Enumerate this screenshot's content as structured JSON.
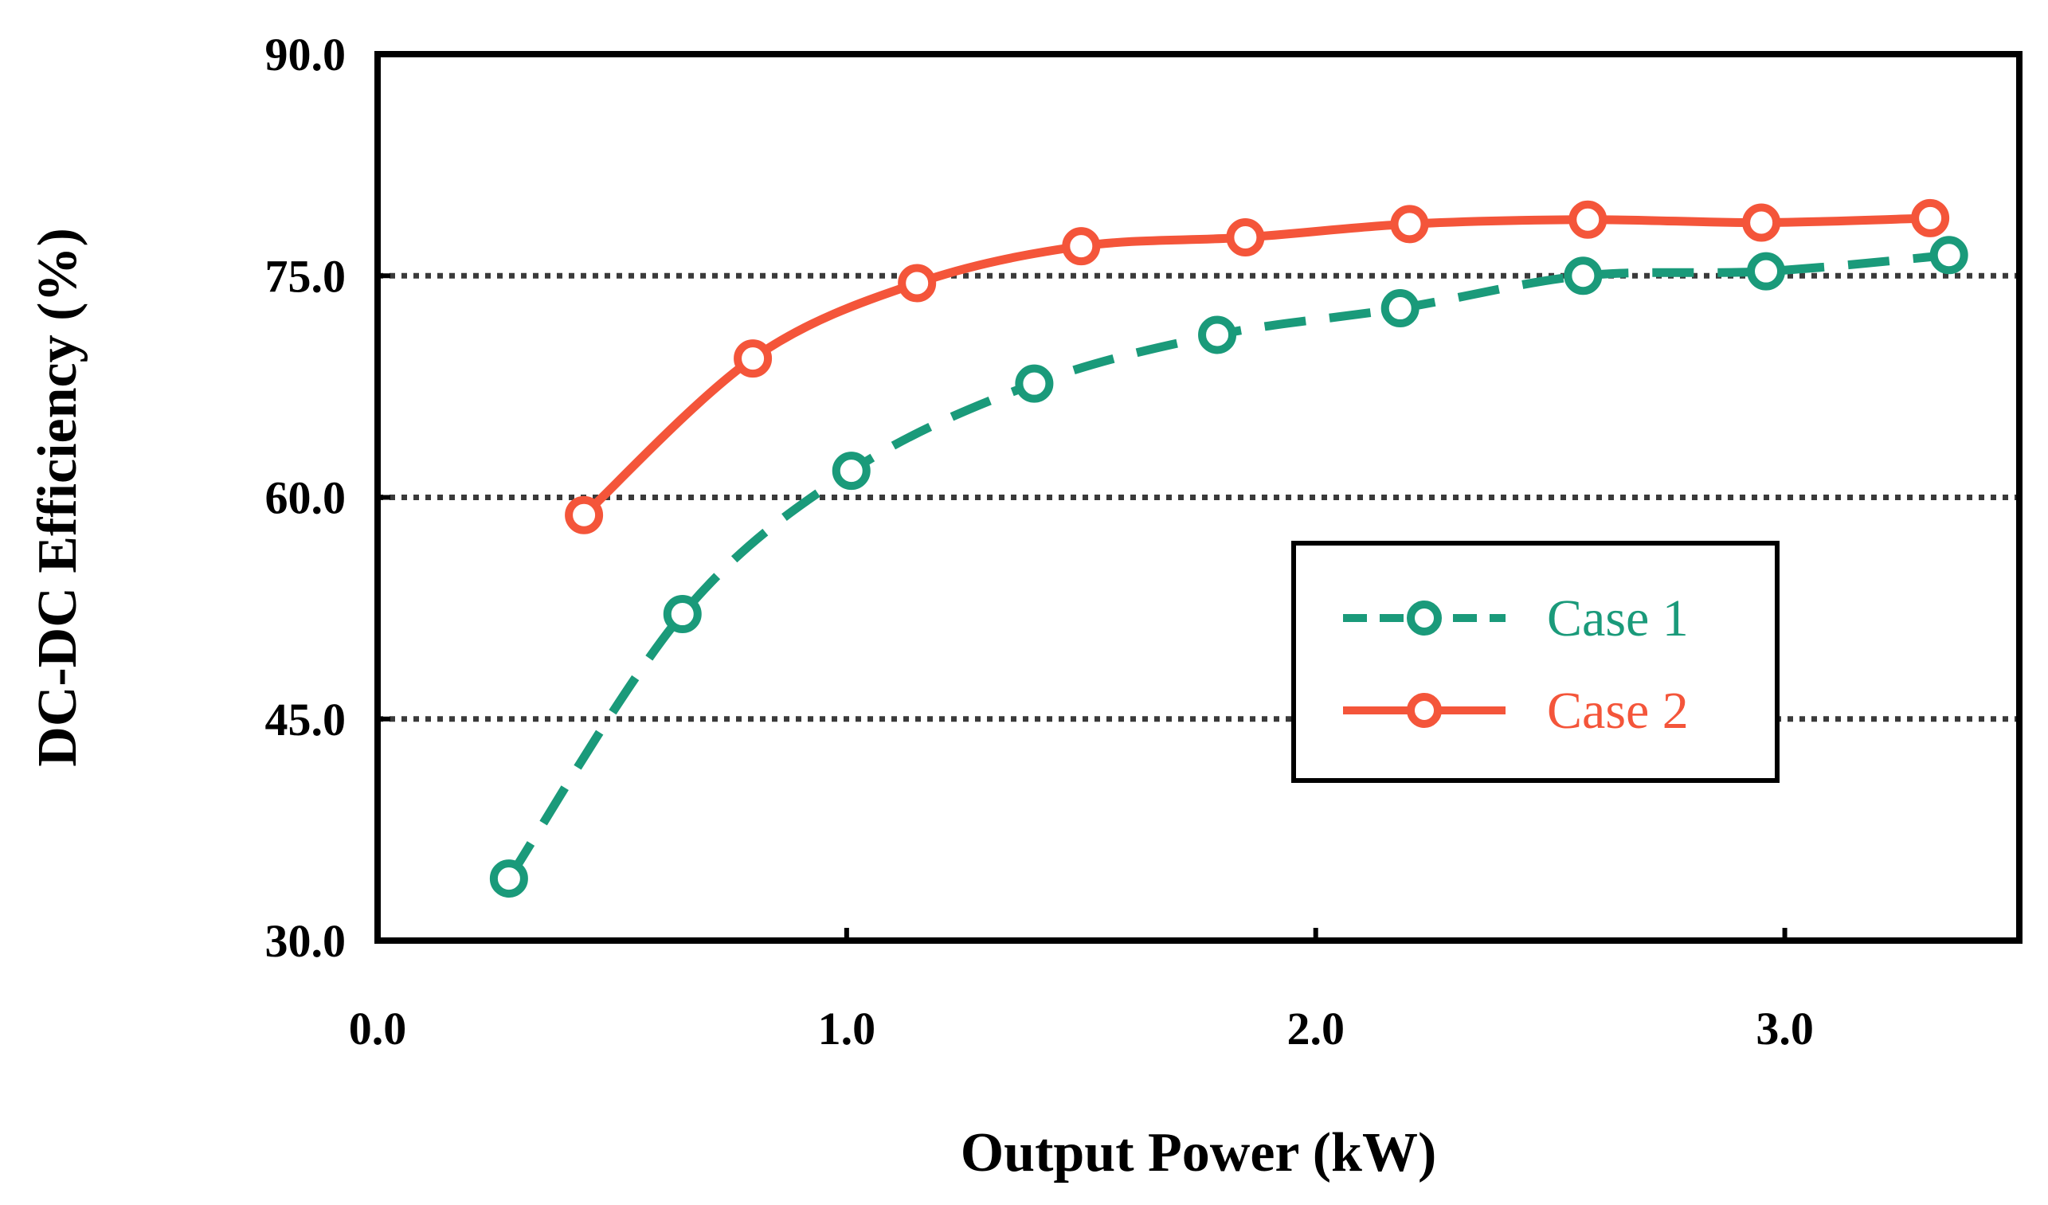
{
  "chart_data": {
    "type": "line",
    "title": "",
    "xlabel": "Output Power (kW)",
    "ylabel": "DC-DC Efficiency (%)",
    "xlim": [
      0.0,
      3.5
    ],
    "ylim": [
      30.0,
      90.0
    ],
    "xticks": [
      "0.0",
      "1.0",
      "2.0",
      "3.0"
    ],
    "xtick_values": [
      0.0,
      1.0,
      2.0,
      3.0
    ],
    "yticks": [
      "30.0",
      "45.0",
      "60.0",
      "75.0",
      "90.0"
    ],
    "ytick_values": [
      30.0,
      45.0,
      60.0,
      75.0,
      90.0
    ],
    "gridlines": "horizontal dotted at 45.0, 60.0, 75.0",
    "legend_position": "center-right",
    "series": [
      {
        "name": "Case 1",
        "color": "#1a9a7a",
        "line_style": "dashed",
        "marker": "open-circle",
        "x": [
          0.28,
          0.65,
          1.01,
          1.4,
          1.79,
          2.18,
          2.57,
          2.96,
          3.35
        ],
        "y": [
          34.2,
          52.1,
          61.8,
          67.7,
          71.0,
          72.8,
          75.0,
          75.3,
          76.4
        ]
      },
      {
        "name": "Case 2",
        "color": "#f4553a",
        "line_style": "solid",
        "marker": "open-circle",
        "x": [
          0.44,
          0.8,
          1.15,
          1.5,
          1.85,
          2.2,
          2.58,
          2.95,
          3.31
        ],
        "y": [
          58.8,
          69.4,
          74.5,
          77.0,
          77.6,
          78.5,
          78.8,
          78.6,
          78.9
        ]
      }
    ]
  }
}
